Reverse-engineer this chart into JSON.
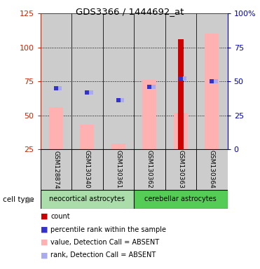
{
  "title": "GDS3366 / 1444692_at",
  "samples": [
    "GSM128874",
    "GSM130340",
    "GSM130361",
    "GSM130362",
    "GSM130363",
    "GSM130364"
  ],
  "pink_bar_heights": [
    56,
    43,
    29,
    76,
    52,
    110
  ],
  "red_bar_heights": [
    0,
    0,
    0,
    0,
    106,
    0
  ],
  "blue_sq_values": [
    45,
    42,
    36,
    46,
    52,
    50
  ],
  "light_blue_sq_values": [
    45,
    42,
    36,
    46,
    52,
    50
  ],
  "ylim_left": [
    25,
    125
  ],
  "ylim_right": [
    0,
    100
  ],
  "yticks_left": [
    25,
    50,
    75,
    100,
    125
  ],
  "yticks_right": [
    0,
    25,
    50,
    75,
    100
  ],
  "ytick_labels_right": [
    "0",
    "25",
    "50",
    "75",
    "100%"
  ],
  "left_axis_color": "#CC2200",
  "right_axis_color": "#0000BB",
  "pink_color": "#FFB0B0",
  "red_color": "#CC0000",
  "blue_color": "#3333CC",
  "light_blue_color": "#AAAAEE",
  "bg_color": "#CCCCCC",
  "neocort_color": "#AADDAA",
  "cerebell_color": "#55CC55",
  "grid_lines": [
    50,
    75,
    100
  ],
  "legend_items": [
    {
      "color": "#CC0000",
      "label": "count"
    },
    {
      "color": "#3333CC",
      "label": "percentile rank within the sample"
    },
    {
      "color": "#FFB0B0",
      "label": "value, Detection Call = ABSENT"
    },
    {
      "color": "#AAAAEE",
      "label": "rank, Detection Call = ABSENT"
    }
  ]
}
